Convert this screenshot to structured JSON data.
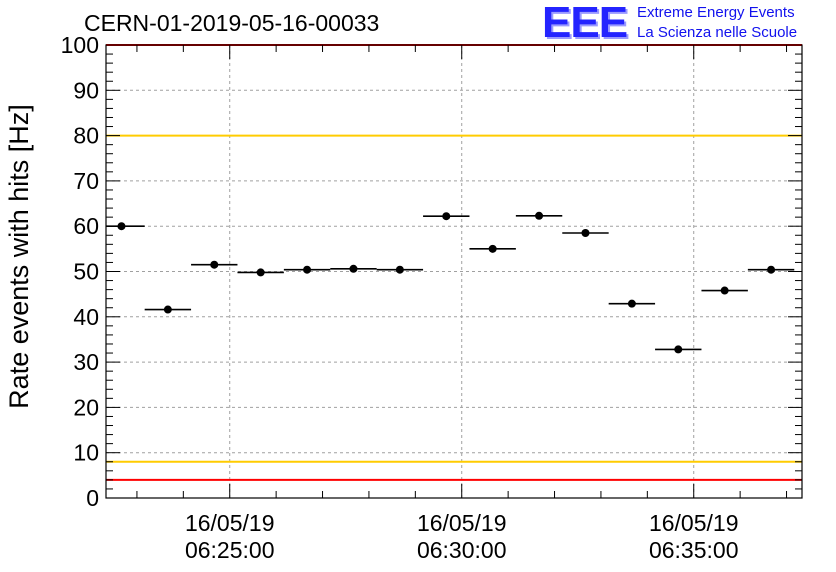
{
  "header": {
    "run_title": "CERN-01-2019-05-16-00033"
  },
  "logo": {
    "mark": "EEE",
    "line1": "Extreme Energy Events",
    "line2": "La Scienza nelle Scuole"
  },
  "colors": {
    "axis": "#000000",
    "grid": "#a0a0a0",
    "points": "#000000",
    "red_limit": "#ff0000",
    "yellow_limit": "#ffcc00",
    "logo": "#2424ff"
  },
  "chart_data": {
    "type": "scatter",
    "title": "",
    "xlabel": "",
    "ylabel": "Rate events with hits [Hz]",
    "ylim": [
      0,
      100
    ],
    "xlim": [
      "06:22:20",
      "06:37:20"
    ],
    "grid": true,
    "yticks": [
      0,
      10,
      20,
      30,
      40,
      50,
      60,
      70,
      80,
      90,
      100
    ],
    "xticks": [
      {
        "t": "06:25:00",
        "date": "16/05/19",
        "time": "06:25:00"
      },
      {
        "t": "06:30:00",
        "date": "16/05/19",
        "time": "06:30:00"
      },
      {
        "t": "06:35:00",
        "date": "16/05/19",
        "time": "06:35:00"
      }
    ],
    "bin_half_width_s": 30,
    "points": [
      {
        "t": "06:22:40",
        "y": 60.0
      },
      {
        "t": "06:23:40",
        "y": 41.6
      },
      {
        "t": "06:24:40",
        "y": 51.5
      },
      {
        "t": "06:25:40",
        "y": 49.8
      },
      {
        "t": "06:26:40",
        "y": 50.4
      },
      {
        "t": "06:27:40",
        "y": 50.6
      },
      {
        "t": "06:28:40",
        "y": 50.4
      },
      {
        "t": "06:29:40",
        "y": 62.2
      },
      {
        "t": "06:30:40",
        "y": 55.0
      },
      {
        "t": "06:31:40",
        "y": 62.3
      },
      {
        "t": "06:32:40",
        "y": 58.5
      },
      {
        "t": "06:33:40",
        "y": 42.9
      },
      {
        "t": "06:34:40",
        "y": 32.8
      },
      {
        "t": "06:35:40",
        "y": 45.8
      },
      {
        "t": "06:36:40",
        "y": 50.4
      }
    ],
    "reference_lines": [
      {
        "y": 100,
        "color": "#ff0000"
      },
      {
        "y": 80,
        "color": "#ffcc00"
      },
      {
        "y": 8,
        "color": "#ffcc00"
      },
      {
        "y": 4,
        "color": "#ff0000"
      }
    ]
  }
}
